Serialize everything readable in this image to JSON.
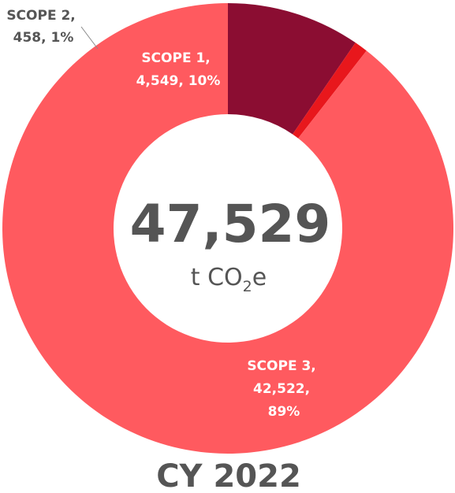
{
  "chart_data": {
    "type": "pie",
    "variant": "donut",
    "title": "CY 2022",
    "total": {
      "value": "47,529",
      "unit_prefix": "t CO",
      "unit_sub": "2",
      "unit_suffix": "e"
    },
    "slices": [
      {
        "name": "SCOPE 1",
        "value": 4549,
        "value_label": "4,549",
        "percent_label": "10%",
        "color": "#8B0D32"
      },
      {
        "name": "SCOPE 2",
        "value": 458,
        "value_label": "458",
        "percent_label": "1%",
        "color": "#E8171C"
      },
      {
        "name": "SCOPE 3",
        "value": 42522,
        "value_label": "42,522",
        "percent_label": "89%",
        "color": "#FF5A5F"
      }
    ],
    "labels": {
      "scope1": {
        "line1": "SCOPE 1,",
        "line2": "4,549, 10%"
      },
      "scope2": {
        "line1": "SCOPE 2,",
        "line2": "458, 1%"
      },
      "scope3": {
        "line1": "SCOPE 3,",
        "line2": "42,522,",
        "line3": "89%"
      }
    },
    "colors": {
      "text_dark": "#555555",
      "text_light": "#ffffff",
      "leader_line": "#888888"
    }
  }
}
